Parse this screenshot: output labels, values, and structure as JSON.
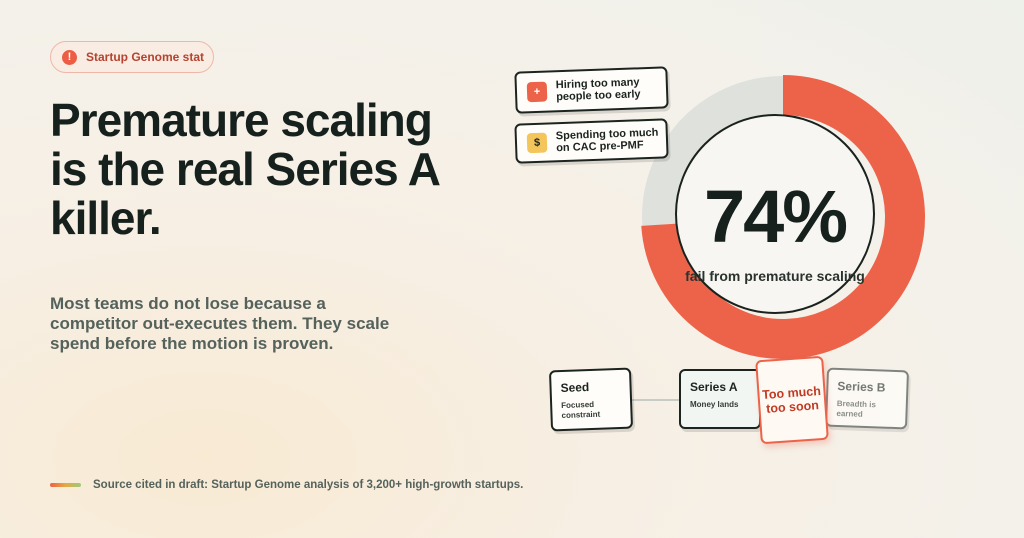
{
  "badge": {
    "icon": "alert-icon",
    "icon_glyph": "!",
    "label": "Startup Genome stat"
  },
  "headline": "Premature scaling is the real Series A killer.",
  "subtext": "Most teams do not lose because a competitor out-executes them. They scale spend before the motion is proven.",
  "source": "Source cited in draft: Startup Genome analysis of 3,200+ high-growth startups.",
  "stat": {
    "value": "74%",
    "label": "fail from premature scaling",
    "fraction": 0.74
  },
  "colors": {
    "accent": "#ec634a",
    "track": "#dfe1dc",
    "dark": "#16201c",
    "yellow": "#f3c55a"
  },
  "callouts": [
    {
      "icon": "plus-icon",
      "glyph": "+",
      "text": "Hiring too many people too early"
    },
    {
      "icon": "dollar-icon",
      "glyph": "$",
      "text": "Spending too much on CAC pre-PMF"
    }
  ],
  "stages": [
    {
      "title": "Seed",
      "desc": "Focused constraint"
    },
    {
      "title": "Series A",
      "desc": "Money lands"
    },
    {
      "title": "Series B",
      "desc": "Breadth is earned"
    }
  ],
  "warning": "Too much too soon"
}
